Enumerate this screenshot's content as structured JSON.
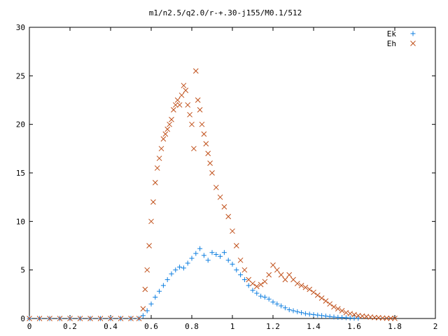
{
  "chart_data": {
    "type": "scatter",
    "title": "m1/n2.5/q2.0/r-+.30-j155/M0.1/512",
    "xlabel": "",
    "ylabel": "",
    "xlim": [
      0,
      2
    ],
    "ylim": [
      0,
      30
    ],
    "xticks": [
      "0",
      "0.2",
      "0.4",
      "0.6",
      "0.8",
      "1",
      "1.2",
      "1.4",
      "1.6",
      "1.8",
      "2"
    ],
    "yticks": [
      "0",
      "5",
      "10",
      "15",
      "20",
      "25",
      "30"
    ],
    "grid": false,
    "legend_position": "top-right",
    "series": [
      {
        "name": "Ek",
        "marker": "plus",
        "color": "#0f7fe0",
        "points": [
          [
            0.0,
            0
          ],
          [
            0.05,
            0
          ],
          [
            0.1,
            0
          ],
          [
            0.15,
            0
          ],
          [
            0.2,
            0
          ],
          [
            0.25,
            0
          ],
          [
            0.3,
            0
          ],
          [
            0.35,
            0
          ],
          [
            0.4,
            0
          ],
          [
            0.45,
            0
          ],
          [
            0.5,
            0
          ],
          [
            0.54,
            0
          ],
          [
            0.56,
            0.3
          ],
          [
            0.58,
            0.8
          ],
          [
            0.6,
            1.5
          ],
          [
            0.62,
            2.2
          ],
          [
            0.64,
            2.8
          ],
          [
            0.66,
            3.4
          ],
          [
            0.68,
            4.0
          ],
          [
            0.7,
            4.6
          ],
          [
            0.72,
            5.0
          ],
          [
            0.74,
            5.3
          ],
          [
            0.76,
            5.2
          ],
          [
            0.78,
            5.7
          ],
          [
            0.8,
            6.2
          ],
          [
            0.82,
            6.7
          ],
          [
            0.84,
            7.2
          ],
          [
            0.86,
            6.5
          ],
          [
            0.88,
            6.0
          ],
          [
            0.9,
            6.8
          ],
          [
            0.92,
            6.6
          ],
          [
            0.94,
            6.4
          ],
          [
            0.96,
            6.8
          ],
          [
            0.98,
            6.0
          ],
          [
            1.0,
            5.6
          ],
          [
            1.02,
            5.0
          ],
          [
            1.04,
            4.5
          ],
          [
            1.06,
            4.0
          ],
          [
            1.08,
            3.4
          ],
          [
            1.1,
            2.9
          ],
          [
            1.12,
            2.6
          ],
          [
            1.14,
            2.3
          ],
          [
            1.16,
            2.2
          ],
          [
            1.18,
            2.0
          ],
          [
            1.2,
            1.7
          ],
          [
            1.22,
            1.5
          ],
          [
            1.24,
            1.3
          ],
          [
            1.26,
            1.1
          ],
          [
            1.28,
            0.9
          ],
          [
            1.3,
            0.8
          ],
          [
            1.32,
            0.7
          ],
          [
            1.34,
            0.6
          ],
          [
            1.36,
            0.5
          ],
          [
            1.38,
            0.45
          ],
          [
            1.4,
            0.4
          ],
          [
            1.42,
            0.35
          ],
          [
            1.44,
            0.3
          ],
          [
            1.46,
            0.25
          ],
          [
            1.48,
            0.2
          ],
          [
            1.5,
            0.15
          ],
          [
            1.52,
            0.12
          ],
          [
            1.54,
            0.1
          ],
          [
            1.56,
            0.08
          ],
          [
            1.58,
            0.05
          ],
          [
            1.6,
            0.03
          ],
          [
            1.62,
            0.02
          ]
        ]
      },
      {
        "name": "Eh",
        "marker": "cross",
        "color": "#c0501a",
        "points": [
          [
            0.0,
            0
          ],
          [
            0.05,
            0
          ],
          [
            0.1,
            0
          ],
          [
            0.15,
            0
          ],
          [
            0.2,
            0
          ],
          [
            0.25,
            0
          ],
          [
            0.3,
            0
          ],
          [
            0.35,
            0
          ],
          [
            0.4,
            0
          ],
          [
            0.45,
            0
          ],
          [
            0.5,
            0
          ],
          [
            0.54,
            0
          ],
          [
            0.56,
            1.0
          ],
          [
            0.57,
            3.0
          ],
          [
            0.58,
            5.0
          ],
          [
            0.59,
            7.5
          ],
          [
            0.6,
            10.0
          ],
          [
            0.61,
            12.0
          ],
          [
            0.62,
            14.0
          ],
          [
            0.63,
            15.5
          ],
          [
            0.64,
            16.5
          ],
          [
            0.65,
            17.5
          ],
          [
            0.66,
            18.5
          ],
          [
            0.67,
            19.0
          ],
          [
            0.68,
            19.5
          ],
          [
            0.69,
            20.0
          ],
          [
            0.7,
            20.5
          ],
          [
            0.71,
            21.5
          ],
          [
            0.72,
            22.0
          ],
          [
            0.73,
            22.5
          ],
          [
            0.74,
            22.0
          ],
          [
            0.75,
            23.0
          ],
          [
            0.76,
            24.0
          ],
          [
            0.77,
            23.5
          ],
          [
            0.78,
            22.0
          ],
          [
            0.79,
            21.0
          ],
          [
            0.8,
            20.0
          ],
          [
            0.81,
            17.5
          ],
          [
            0.82,
            25.5
          ],
          [
            0.83,
            22.5
          ],
          [
            0.84,
            21.5
          ],
          [
            0.85,
            20.0
          ],
          [
            0.86,
            19.0
          ],
          [
            0.87,
            18.0
          ],
          [
            0.88,
            17.0
          ],
          [
            0.89,
            16.0
          ],
          [
            0.9,
            15.0
          ],
          [
            0.92,
            13.5
          ],
          [
            0.94,
            12.5
          ],
          [
            0.96,
            11.5
          ],
          [
            0.98,
            10.5
          ],
          [
            1.0,
            9.0
          ],
          [
            1.02,
            7.5
          ],
          [
            1.04,
            6.0
          ],
          [
            1.06,
            5.0
          ],
          [
            1.08,
            4.0
          ],
          [
            1.1,
            3.6
          ],
          [
            1.12,
            3.3
          ],
          [
            1.14,
            3.5
          ],
          [
            1.16,
            3.8
          ],
          [
            1.18,
            4.5
          ],
          [
            1.2,
            5.5
          ],
          [
            1.22,
            5.0
          ],
          [
            1.24,
            4.5
          ],
          [
            1.26,
            4.0
          ],
          [
            1.28,
            4.5
          ],
          [
            1.3,
            4.0
          ],
          [
            1.32,
            3.6
          ],
          [
            1.34,
            3.4
          ],
          [
            1.36,
            3.2
          ],
          [
            1.38,
            3.0
          ],
          [
            1.4,
            2.7
          ],
          [
            1.42,
            2.4
          ],
          [
            1.44,
            2.1
          ],
          [
            1.46,
            1.8
          ],
          [
            1.48,
            1.5
          ],
          [
            1.5,
            1.2
          ],
          [
            1.52,
            1.0
          ],
          [
            1.54,
            0.8
          ],
          [
            1.56,
            0.6
          ],
          [
            1.58,
            0.5
          ],
          [
            1.6,
            0.4
          ],
          [
            1.62,
            0.3
          ],
          [
            1.64,
            0.25
          ],
          [
            1.66,
            0.2
          ],
          [
            1.68,
            0.15
          ],
          [
            1.7,
            0.1
          ],
          [
            1.72,
            0.08
          ],
          [
            1.74,
            0.05
          ],
          [
            1.76,
            0.03
          ],
          [
            1.78,
            0.02
          ],
          [
            1.8,
            0.01
          ]
        ]
      }
    ]
  }
}
